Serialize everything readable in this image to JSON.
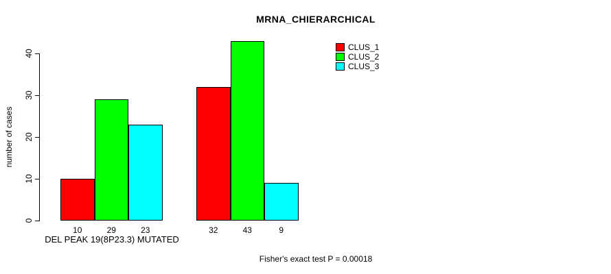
{
  "chart_data": {
    "type": "bar",
    "title": "MRNA_CHIERARCHICAL",
    "ylabel": "number of cases",
    "xlabel": "DEL PEAK 19(8P23.3) MUTATED",
    "annotation": "Fisher's exact test P = 0.00018",
    "yticks": [
      0,
      10,
      20,
      30,
      40
    ],
    "ylim": [
      0,
      44
    ],
    "grid": false,
    "legend_position": "top-right",
    "series": [
      {
        "name": "CLUS_1",
        "color": "#FF0000",
        "values": [
          10,
          32
        ]
      },
      {
        "name": "CLUS_2",
        "color": "#00FF00",
        "values": [
          29,
          43
        ]
      },
      {
        "name": "CLUS_3",
        "color": "#00FFFF",
        "values": [
          23,
          9
        ]
      }
    ],
    "bar_labels": [
      [
        10,
        29,
        23
      ],
      [
        32,
        43,
        9
      ]
    ]
  }
}
